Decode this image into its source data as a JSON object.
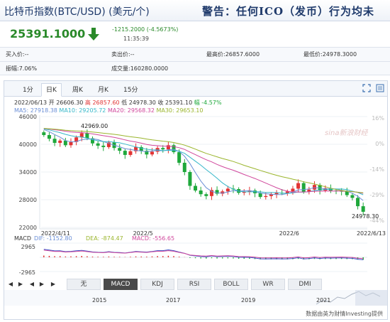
{
  "header": {
    "title": "比特币指数(BTC/USD) (美元/个)",
    "warning": "警告：任何ICO（发币）行为均未"
  },
  "quote": {
    "price": "25391.1000",
    "change": "-1215.2000 (-4.5673%)",
    "time": "11:35:39"
  },
  "stats": {
    "buy": "买入价:--",
    "sell": "卖出价:--",
    "high": "最高价:26857.6000",
    "low": "最低价:24978.3000",
    "amplitude": "振幅:7.06%",
    "volume": "成交量:160280.0000"
  },
  "tabs": [
    "1分",
    "日K",
    "周K",
    "月K",
    "15分"
  ],
  "active_tab": "日K",
  "ohlc_line": {
    "date": "2022/06/13",
    "open": "开 26606.30",
    "high": "高 26857.60",
    "low": "低 24978.30",
    "close": "收 25391.10",
    "change": "幅 -4.57%"
  },
  "ma_line": {
    "ma5": "MA5: 27918.38",
    "ma10": "MA10: 29205.72",
    "ma20": "MA20: 29568.32",
    "ma30": "MA30: 29653.10"
  },
  "y_left": [
    "46000",
    "40000",
    "34000",
    "28000",
    "22000"
  ],
  "y_right": [
    "16%",
    "0%",
    "-14%",
    "-29%",
    "-44%"
  ],
  "x_dates": [
    "2022/4/11",
    "2022/5",
    "2022/6",
    "2022/6/13"
  ],
  "annotations": {
    "high": "42969.00",
    "low": "24978.30"
  },
  "watermark": "sina新浪财经",
  "macd_line": {
    "label": "MACD",
    "dif": "DIF: -1152.80",
    "dea": "DEA: -874.47",
    "macd": "MACD: -556.65"
  },
  "macd_axis": [
    "2965",
    "-2965"
  ],
  "indicator_tabs": [
    "无",
    "MACD",
    "KDJ",
    "RSI",
    "BOLL",
    "WR",
    "DMI"
  ],
  "active_indicator": "MACD",
  "timeline_years": [
    "2015",
    "2017",
    "2019",
    "2021"
  ],
  "source": "数据由英为财情Investing提供",
  "colors": {
    "up": "#e23333",
    "down": "#1ea83b",
    "ma5": "#6b8fd6",
    "ma10": "#36b7c9",
    "ma20": "#d0479c",
    "ma30": "#9ab52c"
  },
  "chart_data": {
    "type": "candlestick",
    "x_range": [
      "2022/4/11",
      "2022/6/13"
    ],
    "ylim": [
      22000,
      46000
    ],
    "last_candle": {
      "date": "2022/06/13",
      "open": 26606.3,
      "high": 26857.6,
      "low": 24978.3,
      "close": 25391.1
    },
    "closes": [
      42000,
      41200,
      40300,
      40800,
      39800,
      40500,
      41500,
      42400,
      41300,
      40200,
      39700,
      39400,
      40400,
      39200,
      38600,
      37700,
      38500,
      39400,
      38600,
      37800,
      38400,
      39200,
      38900,
      39800,
      38300,
      36000,
      34000,
      31000,
      30000,
      29200,
      28800,
      30100,
      29300,
      29800,
      30400,
      30300,
      29500,
      29700,
      30000,
      29400,
      28600,
      28800,
      29200,
      29500,
      29400,
      29800,
      30400,
      31600,
      29700,
      30200,
      31200,
      30000,
      30500,
      30000,
      29900,
      29800,
      29000,
      28400,
      26600,
      25391.1
    ],
    "series": [
      {
        "name": "MA5",
        "last": 27918.38
      },
      {
        "name": "MA10",
        "last": 29205.72
      },
      {
        "name": "MA20",
        "last": 29568.32
      },
      {
        "name": "MA30",
        "last": 29653.1
      }
    ],
    "macd": {
      "dif": -1152.8,
      "dea": -874.47,
      "macd": -556.65,
      "ylim": [
        -2965,
        2965
      ]
    }
  }
}
